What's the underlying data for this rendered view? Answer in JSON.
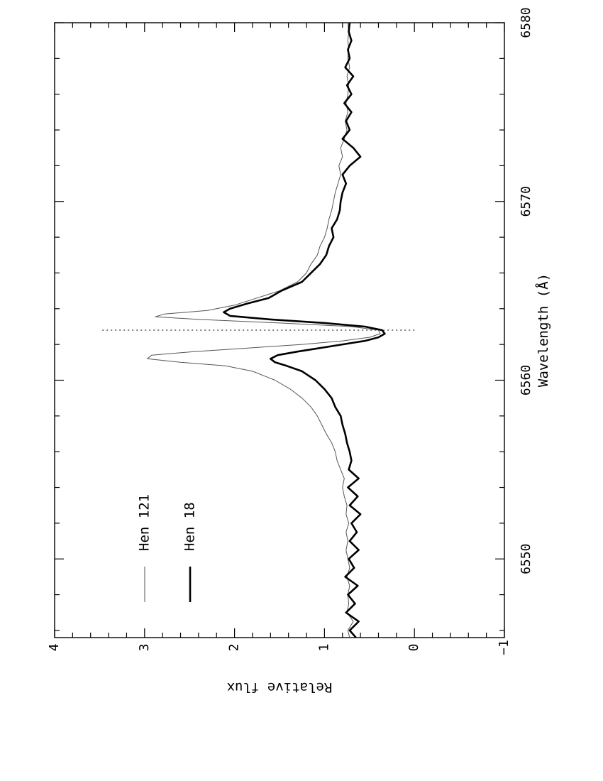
{
  "chart_data": {
    "type": "line",
    "orientation": "rotated-90-ccw",
    "xlabel": "Wavelength (Å)",
    "ylabel": "Relative flux",
    "xlim": [
      6545.6,
      6580
    ],
    "ylim": [
      -1,
      4
    ],
    "x_ticks": [
      "6550",
      "6560",
      "6570",
      "6580"
    ],
    "y_ticks": [
      "4",
      "3",
      "2",
      "1",
      "0",
      "−1"
    ],
    "reference_line": {
      "x": 6562.8,
      "y_range": [
        0,
        3.5
      ],
      "style": "dotted"
    },
    "legend_placement": "top-left",
    "series": [
      {
        "name": "Hen 121",
        "style": "thin",
        "color": "#555555",
        "points": [
          [
            6545.6,
            0.72
          ],
          [
            6546.0,
            0.74
          ],
          [
            6546.5,
            0.68
          ],
          [
            6547.0,
            0.75
          ],
          [
            6547.5,
            0.73
          ],
          [
            6548.0,
            0.74
          ],
          [
            6548.5,
            0.72
          ],
          [
            6549.0,
            0.75
          ],
          [
            6549.5,
            0.72
          ],
          [
            6550.0,
            0.74
          ],
          [
            6550.5,
            0.76
          ],
          [
            6551.0,
            0.74
          ],
          [
            6551.5,
            0.76
          ],
          [
            6552.0,
            0.73
          ],
          [
            6552.5,
            0.76
          ],
          [
            6553.0,
            0.75
          ],
          [
            6553.5,
            0.78
          ],
          [
            6554.0,
            0.8
          ],
          [
            6554.5,
            0.78
          ],
          [
            6555.0,
            0.82
          ],
          [
            6555.5,
            0.86
          ],
          [
            6556.0,
            0.88
          ],
          [
            6556.5,
            0.92
          ],
          [
            6557.0,
            0.98
          ],
          [
            6557.5,
            1.03
          ],
          [
            6558.0,
            1.08
          ],
          [
            6558.5,
            1.15
          ],
          [
            6559.0,
            1.25
          ],
          [
            6559.5,
            1.38
          ],
          [
            6560.0,
            1.55
          ],
          [
            6560.5,
            1.8
          ],
          [
            6560.8,
            2.1
          ],
          [
            6561.0,
            2.6
          ],
          [
            6561.2,
            2.97
          ],
          [
            6561.4,
            2.92
          ],
          [
            6561.6,
            2.45
          ],
          [
            6561.8,
            1.85
          ],
          [
            6562.0,
            1.25
          ],
          [
            6562.2,
            0.8
          ],
          [
            6562.4,
            0.5
          ],
          [
            6562.6,
            0.38
          ],
          [
            6562.8,
            0.4
          ],
          [
            6563.0,
            0.7
          ],
          [
            6563.2,
            1.5
          ],
          [
            6563.4,
            2.4
          ],
          [
            6563.55,
            2.88
          ],
          [
            6563.7,
            2.78
          ],
          [
            6563.9,
            2.3
          ],
          [
            6564.2,
            2.0
          ],
          [
            6564.6,
            1.75
          ],
          [
            6565.0,
            1.5
          ],
          [
            6565.5,
            1.3
          ],
          [
            6566.0,
            1.2
          ],
          [
            6566.5,
            1.15
          ],
          [
            6567.0,
            1.08
          ],
          [
            6567.5,
            1.05
          ],
          [
            6568.0,
            1.0
          ],
          [
            6568.5,
            0.97
          ],
          [
            6569.0,
            0.95
          ],
          [
            6569.5,
            0.92
          ],
          [
            6570.0,
            0.9
          ],
          [
            6570.5,
            0.88
          ],
          [
            6571.0,
            0.85
          ],
          [
            6571.5,
            0.82
          ],
          [
            6572.0,
            0.84
          ],
          [
            6572.5,
            0.8
          ],
          [
            6573.0,
            0.82
          ],
          [
            6573.5,
            0.78
          ],
          [
            6574.0,
            0.75
          ],
          [
            6574.5,
            0.77
          ],
          [
            6575.0,
            0.74
          ],
          [
            6575.5,
            0.76
          ],
          [
            6576.0,
            0.74
          ],
          [
            6576.5,
            0.73
          ],
          [
            6577.0,
            0.75
          ],
          [
            6577.5,
            0.72
          ],
          [
            6578.0,
            0.74
          ],
          [
            6578.5,
            0.73
          ],
          [
            6579.0,
            0.74
          ],
          [
            6579.5,
            0.73
          ],
          [
            6580.0,
            0.74
          ]
        ]
      },
      {
        "name": "Hen 18",
        "style": "thick",
        "color": "#000000",
        "points": [
          [
            6545.6,
            0.65
          ],
          [
            6546.0,
            0.72
          ],
          [
            6546.5,
            0.62
          ],
          [
            6547.0,
            0.76
          ],
          [
            6547.5,
            0.66
          ],
          [
            6548.0,
            0.74
          ],
          [
            6548.5,
            0.63
          ],
          [
            6549.0,
            0.77
          ],
          [
            6549.5,
            0.67
          ],
          [
            6550.0,
            0.73
          ],
          [
            6550.5,
            0.62
          ],
          [
            6551.0,
            0.72
          ],
          [
            6551.5,
            0.64
          ],
          [
            6552.0,
            0.7
          ],
          [
            6552.5,
            0.6
          ],
          [
            6553.0,
            0.72
          ],
          [
            6553.5,
            0.63
          ],
          [
            6554.0,
            0.74
          ],
          [
            6554.5,
            0.62
          ],
          [
            6555.0,
            0.73
          ],
          [
            6555.5,
            0.7
          ],
          [
            6556.0,
            0.72
          ],
          [
            6556.5,
            0.75
          ],
          [
            6557.0,
            0.77
          ],
          [
            6557.5,
            0.8
          ],
          [
            6558.0,
            0.82
          ],
          [
            6558.5,
            0.88
          ],
          [
            6559.0,
            0.92
          ],
          [
            6559.5,
            1.0
          ],
          [
            6560.0,
            1.1
          ],
          [
            6560.5,
            1.25
          ],
          [
            6560.8,
            1.42
          ],
          [
            6561.0,
            1.55
          ],
          [
            6561.2,
            1.6
          ],
          [
            6561.4,
            1.52
          ],
          [
            6561.6,
            1.3
          ],
          [
            6561.8,
            1.05
          ],
          [
            6562.0,
            0.8
          ],
          [
            6562.2,
            0.55
          ],
          [
            6562.4,
            0.4
          ],
          [
            6562.6,
            0.33
          ],
          [
            6562.8,
            0.36
          ],
          [
            6563.0,
            0.55
          ],
          [
            6563.2,
            1.0
          ],
          [
            6563.4,
            1.6
          ],
          [
            6563.6,
            2.05
          ],
          [
            6563.8,
            2.12
          ],
          [
            6564.0,
            2.05
          ],
          [
            6564.3,
            1.85
          ],
          [
            6564.6,
            1.62
          ],
          [
            6565.0,
            1.48
          ],
          [
            6565.5,
            1.25
          ],
          [
            6566.0,
            1.15
          ],
          [
            6566.5,
            1.05
          ],
          [
            6567.0,
            0.98
          ],
          [
            6567.5,
            0.95
          ],
          [
            6568.0,
            0.9
          ],
          [
            6568.5,
            0.92
          ],
          [
            6569.0,
            0.86
          ],
          [
            6569.5,
            0.83
          ],
          [
            6570.0,
            0.82
          ],
          [
            6570.5,
            0.8
          ],
          [
            6571.0,
            0.76
          ],
          [
            6571.5,
            0.8
          ],
          [
            6572.0,
            0.72
          ],
          [
            6572.5,
            0.6
          ],
          [
            6573.0,
            0.68
          ],
          [
            6573.5,
            0.8
          ],
          [
            6574.0,
            0.72
          ],
          [
            6574.5,
            0.76
          ],
          [
            6575.0,
            0.7
          ],
          [
            6575.5,
            0.78
          ],
          [
            6576.0,
            0.7
          ],
          [
            6576.5,
            0.75
          ],
          [
            6577.0,
            0.68
          ],
          [
            6577.5,
            0.77
          ],
          [
            6578.0,
            0.72
          ],
          [
            6578.5,
            0.74
          ],
          [
            6579.0,
            0.7
          ],
          [
            6579.5,
            0.73
          ],
          [
            6580.0,
            0.72
          ]
        ]
      }
    ]
  }
}
